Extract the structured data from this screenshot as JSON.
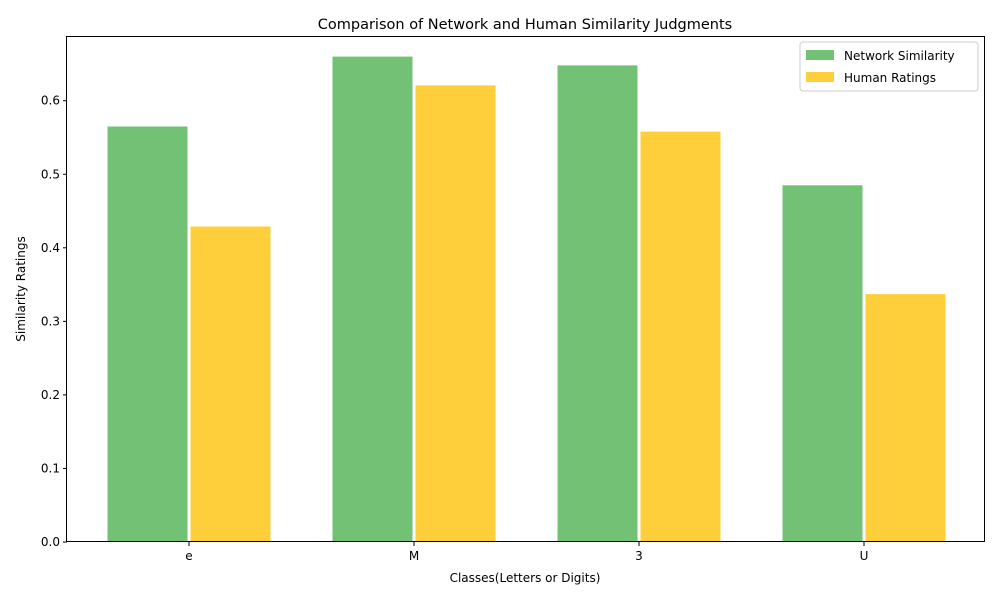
{
  "chart_data": {
    "type": "bar",
    "title": "Comparison of Network and Human Similarity Judgments",
    "xlabel": "Classes(Letters or Digits)",
    "ylabel": "Similarity Ratings",
    "categories": [
      "e",
      "M",
      "3",
      "U"
    ],
    "series": [
      {
        "name": "Network Similarity",
        "values": [
          0.565,
          0.66,
          0.648,
          0.485
        ],
        "color": "#72c174"
      },
      {
        "name": "Human Ratings",
        "values": [
          0.429,
          0.621,
          0.558,
          0.337
        ],
        "color": "#fecf3b"
      }
    ],
    "ylim": [
      0,
      0.688
    ],
    "yticks": [
      "0.0",
      "0.1",
      "0.2",
      "0.3",
      "0.4",
      "0.5",
      "0.6"
    ],
    "grid": false,
    "legend_position": "top-right"
  }
}
